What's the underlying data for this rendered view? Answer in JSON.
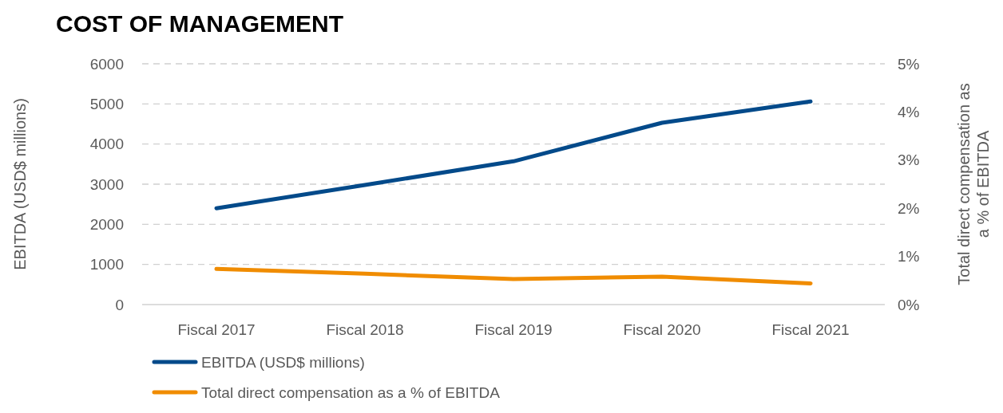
{
  "chart_data": {
    "type": "line",
    "title": "COST OF MANAGEMENT",
    "ylabel": "EBITDA (USD$ millions)",
    "y2label": "Total direct compensation as a % of EBITDA",
    "categories": [
      "Fiscal 2017",
      "Fiscal 2018",
      "Fiscal 2019",
      "Fiscal 2020",
      "Fiscal 2021"
    ],
    "series": [
      {
        "name": "EBITDA (USD$ millions)",
        "color": "#034a8a",
        "values": [
          2400,
          2980,
          3570,
          4530,
          5060
        ]
      },
      {
        "name": "Total direct compensation as a % of EBITDA",
        "color": "#f08c00",
        "axis": "y2",
        "values": [
          0.74,
          0.64,
          0.53,
          0.58,
          0.44
        ]
      }
    ],
    "ylim": [
      0,
      6000
    ],
    "yticks": [
      0,
      1000,
      2000,
      3000,
      4000,
      5000,
      6000
    ],
    "y2lim": [
      0,
      5
    ],
    "y2ticks": [
      {
        "value": 0,
        "label": "0%"
      },
      {
        "value": 1,
        "label": "1%"
      },
      {
        "value": 2,
        "label": "2%"
      },
      {
        "value": 3,
        "label": "3%"
      },
      {
        "value": 4,
        "label": "4%"
      },
      {
        "value": 5,
        "label": "5%"
      }
    ],
    "grid": "y",
    "legend": "bottom",
    "marker": "none",
    "line_style": "solid"
  }
}
